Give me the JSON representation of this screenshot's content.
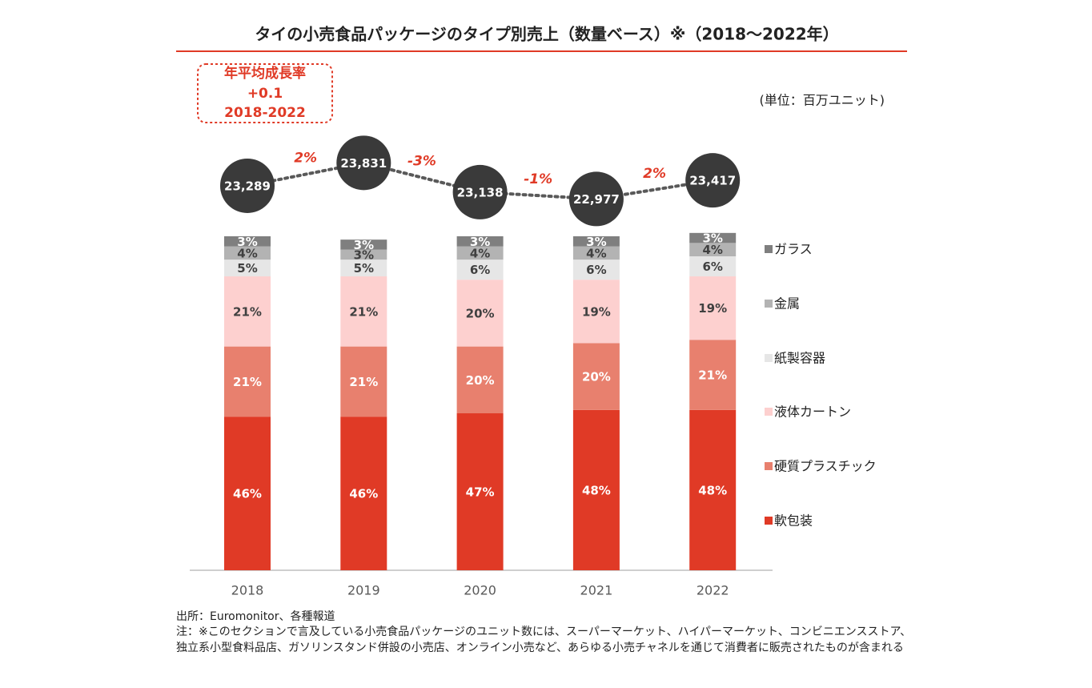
{
  "chart_data": {
    "type": "stacked_bar",
    "title": "タイの小売食品パッケージのタイプ別売上（数量ベース）※（2018〜2022年）",
    "unit": "(単位：百万ユニット)",
    "annotation": [
      "年平均成長率",
      "+0.1",
      "2018-2022"
    ],
    "categories": [
      "2018",
      "2019",
      "2020",
      "2021",
      "2022"
    ],
    "ylim": [
      0,
      100
    ],
    "series": [
      {
        "name": "軟包装",
        "color": "#e03a26",
        "label_color": "#ffffff",
        "values": [
          46,
          46,
          47,
          48,
          48
        ],
        "value_labels": [
          "46%",
          "46%",
          "47%",
          "48%",
          "48%"
        ]
      },
      {
        "name": "硬質プラスチック",
        "color": "#e8806e",
        "label_color": "#ffffff",
        "values": [
          21,
          21,
          20,
          20,
          21
        ],
        "value_labels": [
          "21%",
          "21%",
          "20%",
          "20%",
          "21%"
        ]
      },
      {
        "name": "液体カートン",
        "color": "#fdd0cf",
        "label_color": "#404040",
        "values": [
          21,
          21,
          20,
          19,
          19
        ],
        "value_labels": [
          "21%",
          "21%",
          "20%",
          "19%",
          "19%"
        ]
      },
      {
        "name": "紙製容器",
        "color": "#e6e6e6",
        "label_color": "#404040",
        "values": [
          5,
          5,
          6,
          6,
          6
        ],
        "value_labels": [
          "5%",
          "5%",
          "6%",
          "6%",
          "6%"
        ]
      },
      {
        "name": "金属",
        "color": "#b3b3b3",
        "label_color": "#404040",
        "values": [
          4,
          3,
          4,
          4,
          4
        ],
        "value_labels": [
          "4%",
          "3%",
          "4%",
          "4%",
          "4%"
        ]
      },
      {
        "name": "ガラス",
        "color": "#7f7f7f",
        "label_color": "#ffffff",
        "values": [
          3,
          3,
          3,
          3,
          3
        ],
        "value_labels": [
          "3%",
          "3%",
          "3%",
          "3%",
          "3%"
        ]
      }
    ],
    "totals": {
      "color": "#3a3a3a",
      "values": [
        23289,
        23831,
        23138,
        22977,
        23417
      ],
      "value_labels": [
        "23,289",
        "23,831",
        "23,138",
        "22,977",
        "23,417"
      ],
      "y2lim": [
        22000,
        24500
      ]
    },
    "growth": {
      "color": "#e03a26",
      "values": [
        2,
        -3,
        -1,
        2
      ],
      "value_labels": [
        "2%",
        "-3%",
        "-1%",
        "2%"
      ]
    },
    "notes": [
      "出所：Euromonitor、各種報道",
      "注：※このセクションで言及している小売食品パッケージのユニット数には、スーパーマーケット、ハイパーマーケット、コンビニエンスストア、",
      "独立系小型食料品店、ガソリンスタンド併設の小売店、オンライン小売など、あらゆる小売チャネルを通じて消費者に販売されたものが含まれる"
    ]
  }
}
